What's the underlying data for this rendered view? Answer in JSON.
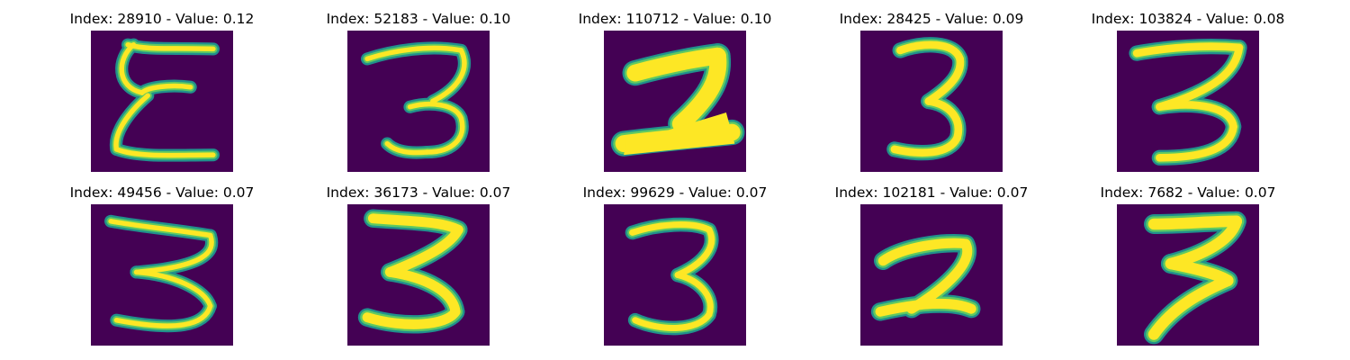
{
  "colors": {
    "background": "#440154",
    "stroke_edge": "#21918c",
    "stroke_mid": "#5ec962",
    "stroke_core": "#fde725",
    "title_text": "#000000"
  },
  "panels": [
    {
      "title": "Index: 28910 - Value: 0.12",
      "index": 28910,
      "value": 0.12,
      "digit": "3"
    },
    {
      "title": "Index: 52183 - Value: 0.10",
      "index": 52183,
      "value": 0.1,
      "digit": "3"
    },
    {
      "title": "Index: 110712 - Value: 0.10",
      "index": 110712,
      "value": 0.1,
      "digit": "2"
    },
    {
      "title": "Index: 28425 - Value: 0.09",
      "index": 28425,
      "value": 0.09,
      "digit": "3"
    },
    {
      "title": "Index: 103824 - Value: 0.08",
      "index": 103824,
      "value": 0.08,
      "digit": "3"
    },
    {
      "title": "Index: 49456 - Value: 0.07",
      "index": 49456,
      "value": 0.07,
      "digit": "3"
    },
    {
      "title": "Index: 36173 - Value: 0.07",
      "index": 36173,
      "value": 0.07,
      "digit": "3"
    },
    {
      "title": "Index: 99629 - Value: 0.07",
      "index": 99629,
      "value": 0.07,
      "digit": "3"
    },
    {
      "title": "Index: 102181 - Value: 0.07",
      "index": 102181,
      "value": 0.07,
      "digit": "2"
    },
    {
      "title": "Index: 7682 - Value: 0.07",
      "index": 7682,
      "value": 0.07,
      "digit": "3"
    }
  ]
}
